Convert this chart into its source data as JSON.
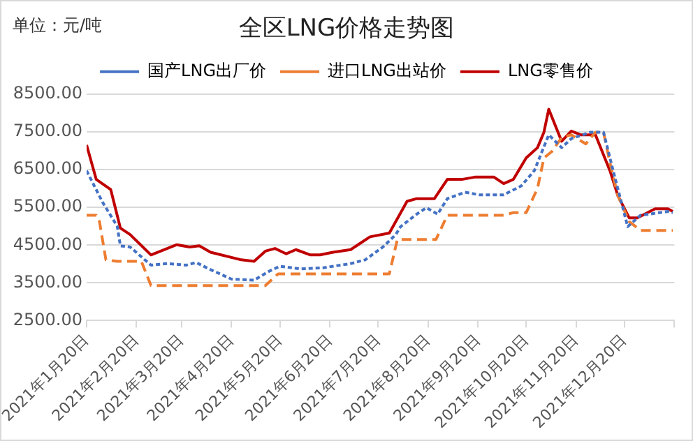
{
  "chart_data": {
    "type": "line",
    "title": "全区LNG价格走势图",
    "ylabel": "单位：元/吨",
    "xlim": [
      "2021-01-20",
      "2022-01-20"
    ],
    "xticks": [
      {
        "value": "2021-01-20",
        "label": "2021年1月20日"
      },
      {
        "value": "2021-02-20",
        "label": "2021年2月20日"
      },
      {
        "value": "2021-03-20",
        "label": "2021年3月20日"
      },
      {
        "value": "2021-04-20",
        "label": "2021年4月20日"
      },
      {
        "value": "2021-05-20",
        "label": "2021年5月20日"
      },
      {
        "value": "2021-06-20",
        "label": "2021年6月20日"
      },
      {
        "value": "2021-07-20",
        "label": "2021年7月20日"
      },
      {
        "value": "2021-08-20",
        "label": "2021年8月20日"
      },
      {
        "value": "2021-09-20",
        "label": "2021年9月20日"
      },
      {
        "value": "2021-10-20",
        "label": "2021年10月20日"
      },
      {
        "value": "2021-11-20",
        "label": "2021年11月20日"
      },
      {
        "value": "2021-12-20",
        "label": "2021年12月20日"
      },
      {
        "value": "2022-01-20",
        "label": null
      }
    ],
    "ylim": [
      2500,
      8500
    ],
    "yticks": [
      {
        "value": 2500,
        "label": "2500.00"
      },
      {
        "value": 3500,
        "label": "3500.00"
      },
      {
        "value": 4500,
        "label": "4500.00"
      },
      {
        "value": 5500,
        "label": "5500.00"
      },
      {
        "value": 6500,
        "label": "6500.00"
      },
      {
        "value": 7500,
        "label": "7500.00"
      },
      {
        "value": 8500,
        "label": "8500.00"
      }
    ],
    "grid": "y",
    "legend": "top",
    "marker": "none",
    "series": [
      {
        "name": "国产LNG出厂价",
        "color": "#4472c4",
        "line_style": "dotted",
        "x": [
          "2021-01-20",
          "2021-01-30",
          "2021-02-08",
          "2021-02-10",
          "2021-02-16",
          "2021-03-01",
          "2021-03-11",
          "2021-03-23",
          "2021-03-29",
          "2021-04-06",
          "2021-04-20",
          "2021-05-04",
          "2021-05-13",
          "2021-05-20",
          "2021-06-02",
          "2021-06-16",
          "2021-07-03",
          "2021-07-12",
          "2021-07-23",
          "2021-07-31",
          "2021-08-03",
          "2021-08-13",
          "2021-08-19",
          "2021-08-26",
          "2021-09-01",
          "2021-09-12",
          "2021-09-21",
          "2021-10-06",
          "2021-10-17",
          "2021-10-25",
          "2021-11-03",
          "2021-11-11",
          "2021-11-17",
          "2021-11-29",
          "2021-12-07",
          "2021-12-13",
          "2021-12-22",
          "2021-12-30",
          "2022-01-16",
          "2022-01-19"
        ],
        "values": [
          6470,
          5630,
          5000,
          4480,
          4450,
          3970,
          4010,
          3970,
          4040,
          3870,
          3600,
          3570,
          3800,
          3940,
          3870,
          3900,
          4010,
          4110,
          4450,
          4780,
          4990,
          5320,
          5490,
          5320,
          5730,
          5900,
          5830,
          5830,
          6070,
          6470,
          7420,
          7080,
          7320,
          7490,
          7490,
          6470,
          4990,
          5290,
          5390,
          5360
        ]
      },
      {
        "name": "进口LNG出站价",
        "color": "#ed7d31",
        "line_style": "dashed",
        "x": [
          "2021-01-20",
          "2021-01-26",
          "2021-01-28",
          "2021-02-01",
          "2021-02-08",
          "2021-02-23",
          "2021-03-01",
          "2021-05-11",
          "2021-05-19",
          "2021-07-27",
          "2021-08-01",
          "2021-08-25",
          "2021-09-01",
          "2021-10-06",
          "2021-10-12",
          "2021-10-20",
          "2021-10-27",
          "2021-10-31",
          "2021-11-05",
          "2021-11-11",
          "2021-11-17",
          "2021-11-26",
          "2021-12-02",
          "2021-12-07",
          "2021-12-11",
          "2021-12-16",
          "2021-12-23",
          "2021-12-30",
          "2022-01-19"
        ],
        "values": [
          5290,
          5290,
          5120,
          4110,
          4070,
          4070,
          3430,
          3430,
          3740,
          3740,
          4650,
          4650,
          5290,
          5290,
          5360,
          5360,
          6000,
          6810,
          6980,
          7350,
          7420,
          7180,
          7490,
          7490,
          6680,
          5800,
          5120,
          4890,
          4890
        ]
      },
      {
        "name": "LNG零售价",
        "color": "#c00000",
        "line_style": "solid",
        "x": [
          "2021-01-20",
          "2021-01-26",
          "2021-02-04",
          "2021-02-10",
          "2021-02-16",
          "2021-03-01",
          "2021-03-17",
          "2021-03-25",
          "2021-03-31",
          "2021-04-07",
          "2021-04-26",
          "2021-05-04",
          "2021-05-11",
          "2021-05-17",
          "2021-05-24",
          "2021-05-30",
          "2021-06-08",
          "2021-06-14",
          "2021-06-22",
          "2021-07-03",
          "2021-07-15",
          "2021-07-27",
          "2021-08-07",
          "2021-08-13",
          "2021-08-24",
          "2021-09-01",
          "2021-09-10",
          "2021-09-18",
          "2021-09-30",
          "2021-10-06",
          "2021-10-12",
          "2021-10-20",
          "2021-10-27",
          "2021-10-31",
          "2021-11-03",
          "2021-11-11",
          "2021-11-17",
          "2021-11-23",
          "2021-12-02",
          "2021-12-11",
          "2021-12-16",
          "2021-12-23",
          "2021-12-28",
          "2022-01-08",
          "2022-01-16",
          "2022-01-19"
        ],
        "values": [
          7150,
          6240,
          5970,
          4950,
          4780,
          4240,
          4510,
          4450,
          4480,
          4310,
          4110,
          4070,
          4340,
          4410,
          4270,
          4380,
          4240,
          4240,
          4310,
          4380,
          4720,
          4820,
          5660,
          5730,
          5730,
          6240,
          6240,
          6300,
          6300,
          6130,
          6240,
          6810,
          7080,
          7490,
          8100,
          7250,
          7520,
          7420,
          7420,
          6470,
          5800,
          5220,
          5220,
          5460,
          5460,
          5390
        ]
      }
    ]
  }
}
